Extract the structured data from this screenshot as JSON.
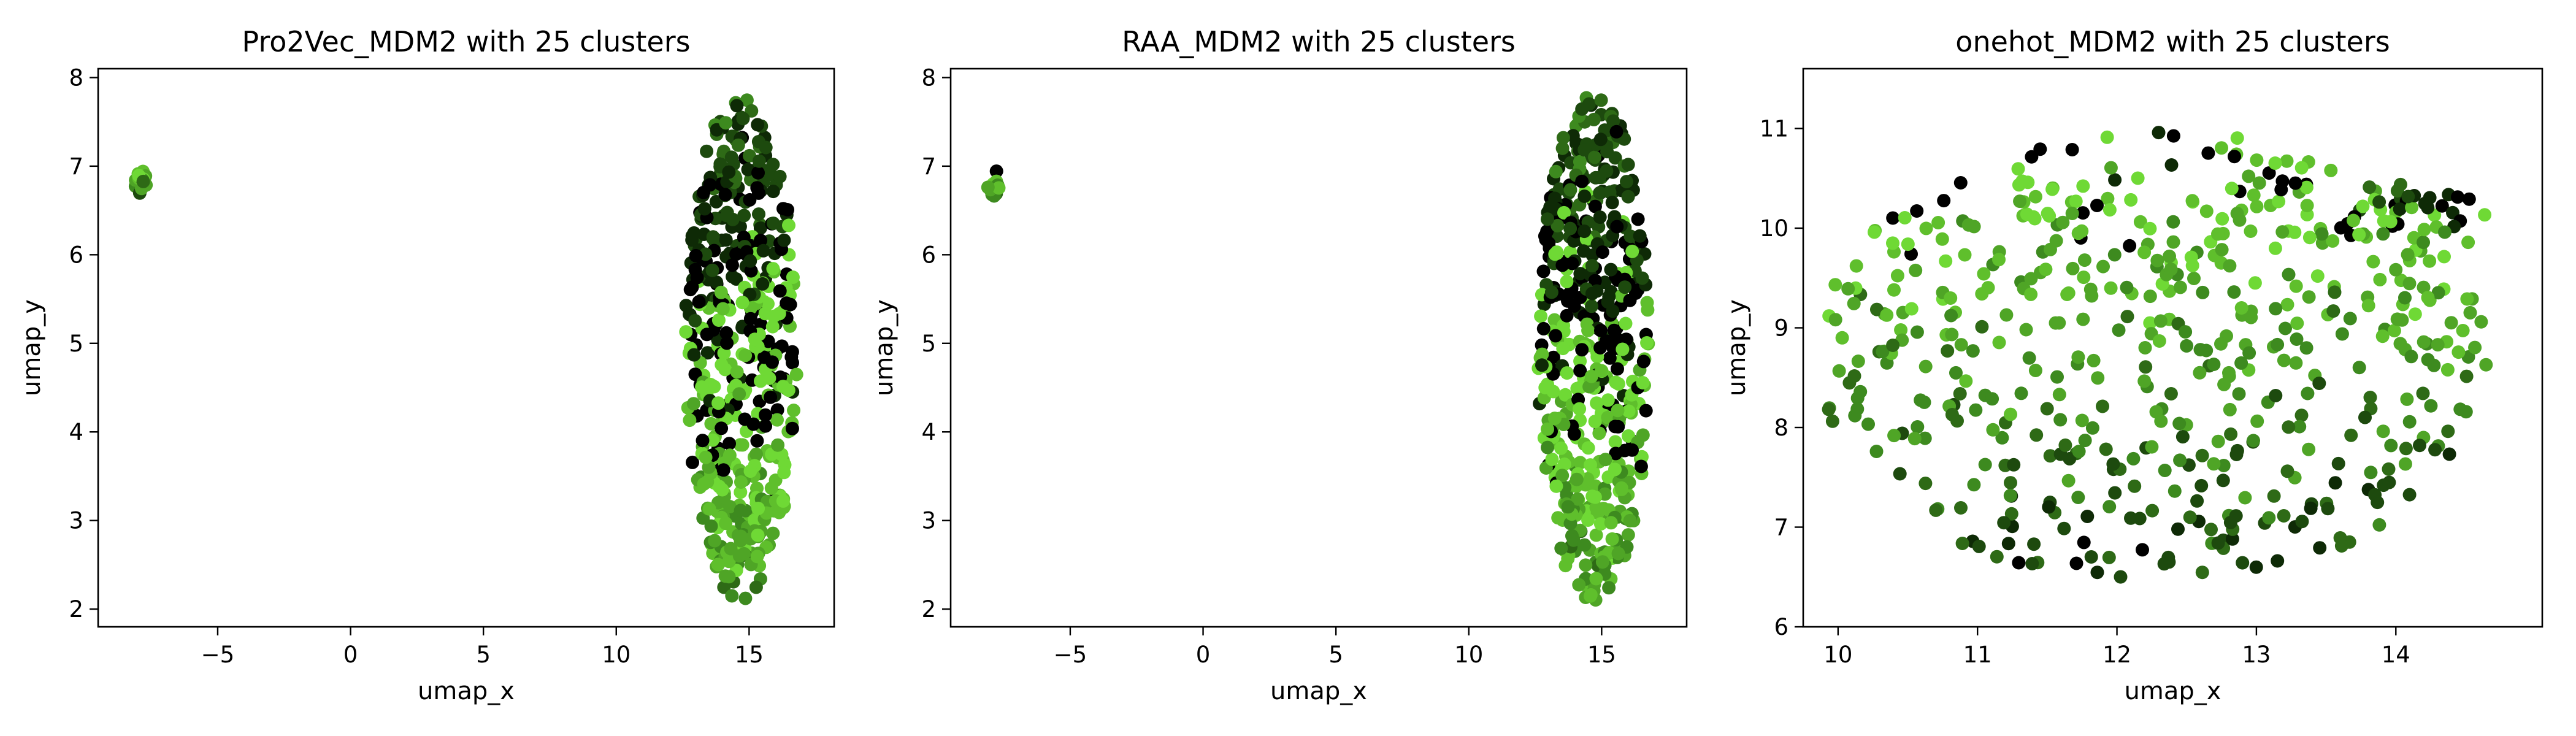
{
  "palette": [
    "#000000",
    "#0e2a06",
    "#1d4a0e",
    "#2e6a16",
    "#3d8a1f",
    "#4fa526",
    "#5fbf2c",
    "#6fd935"
  ],
  "chart_data": [
    {
      "type": "scatter",
      "title": "Pro2Vec_MDM2 with 25 clusters",
      "xlabel": "umap_x",
      "ylabel": "umap_y",
      "xlim": [
        -9.5,
        18.2
      ],
      "ylim": [
        1.8,
        8.1
      ],
      "xticks": [
        -5,
        0,
        5,
        10,
        15
      ],
      "yticks": [
        2,
        3,
        4,
        5,
        6,
        7,
        8
      ],
      "grid": false,
      "legend": "none",
      "n_clusters": 25,
      "clusters": [
        {
          "shape": "ellipse",
          "center": [
            -7.9,
            6.78
          ],
          "spread": [
            0.22,
            0.2
          ],
          "count": 14
        },
        {
          "shape": "ellipse",
          "center": [
            14.7,
            4.95
          ],
          "spread": [
            2.1,
            2.85
          ],
          "count": 520
        }
      ]
    },
    {
      "type": "scatter",
      "title": "RAA_MDM2 with 25 clusters",
      "xlabel": "umap_x",
      "ylabel": "umap_y",
      "xlim": [
        -9.5,
        18.2
      ],
      "ylim": [
        1.8,
        8.1
      ],
      "xticks": [
        -5,
        0,
        5,
        10,
        15
      ],
      "yticks": [
        2,
        3,
        4,
        5,
        6,
        7,
        8
      ],
      "grid": false,
      "legend": "none",
      "n_clusters": 25,
      "clusters": [
        {
          "shape": "ellipse",
          "center": [
            -7.9,
            6.78
          ],
          "spread": [
            0.22,
            0.2
          ],
          "count": 14
        },
        {
          "shape": "ellipse",
          "center": [
            14.7,
            4.95
          ],
          "spread": [
            2.1,
            2.85
          ],
          "count": 520
        }
      ]
    },
    {
      "type": "scatter",
      "title": "onehot_MDM2 with 25 clusters",
      "xlabel": "umap_x",
      "ylabel": "umap_y",
      "xlim": [
        9.75,
        15.05
      ],
      "ylim": [
        6.0,
        11.6
      ],
      "xticks": [
        10,
        11,
        12,
        13,
        14
      ],
      "yticks": [
        6,
        7,
        8,
        9,
        10,
        11
      ],
      "grid": false,
      "legend": "none",
      "n_clusters": 25,
      "clusters": [
        {
          "shape": "ellipse",
          "center": [
            12.25,
            8.7
          ],
          "spread": [
            2.4,
            2.3
          ],
          "count": 520
        },
        {
          "shape": "ellipse",
          "center": [
            14.1,
            10.1
          ],
          "spread": [
            0.55,
            0.38
          ],
          "count": 45
        }
      ]
    }
  ]
}
